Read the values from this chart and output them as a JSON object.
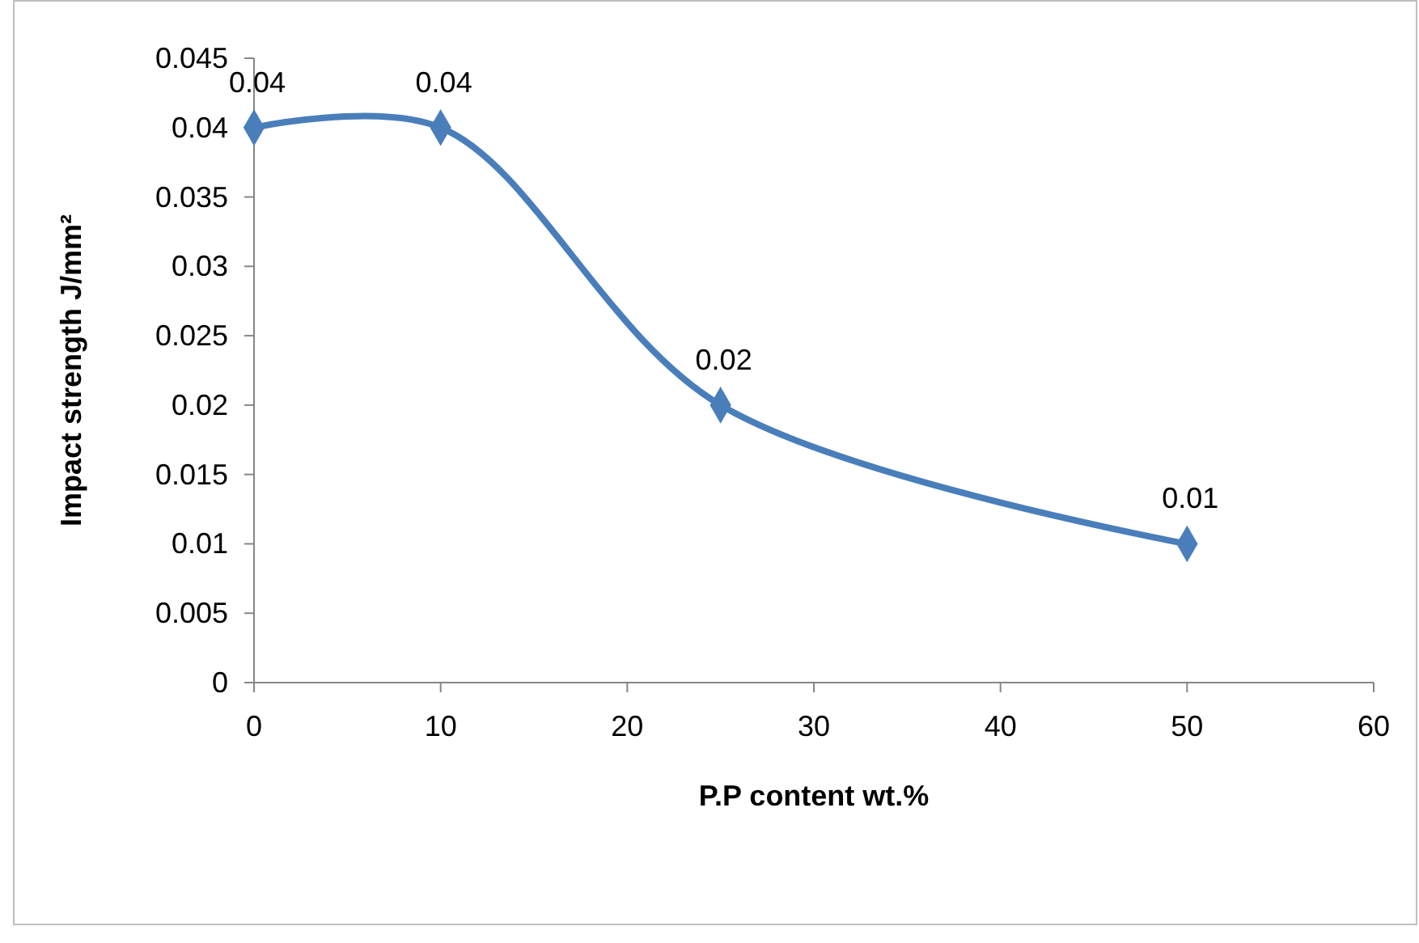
{
  "chart_data": {
    "type": "line",
    "xlabel": "P.P content wt.%",
    "ylabel": "Impact strength J/mm²",
    "x": [
      0,
      10,
      25,
      50
    ],
    "series": [
      {
        "color": "#4a7ebb",
        "values": [
          0.04,
          0.04,
          0.02,
          0.01
        ]
      }
    ],
    "xlim": [
      0,
      60
    ],
    "xticks": [
      0,
      10,
      20,
      30,
      40,
      50,
      60
    ],
    "ylim": [
      0,
      0.045
    ],
    "yticks": [
      0,
      0.005,
      0.01,
      0.015,
      0.02,
      0.025,
      0.03,
      0.035,
      0.04,
      0.045
    ],
    "marker": "diamond",
    "line_style": "solid",
    "data_labels": true
  }
}
